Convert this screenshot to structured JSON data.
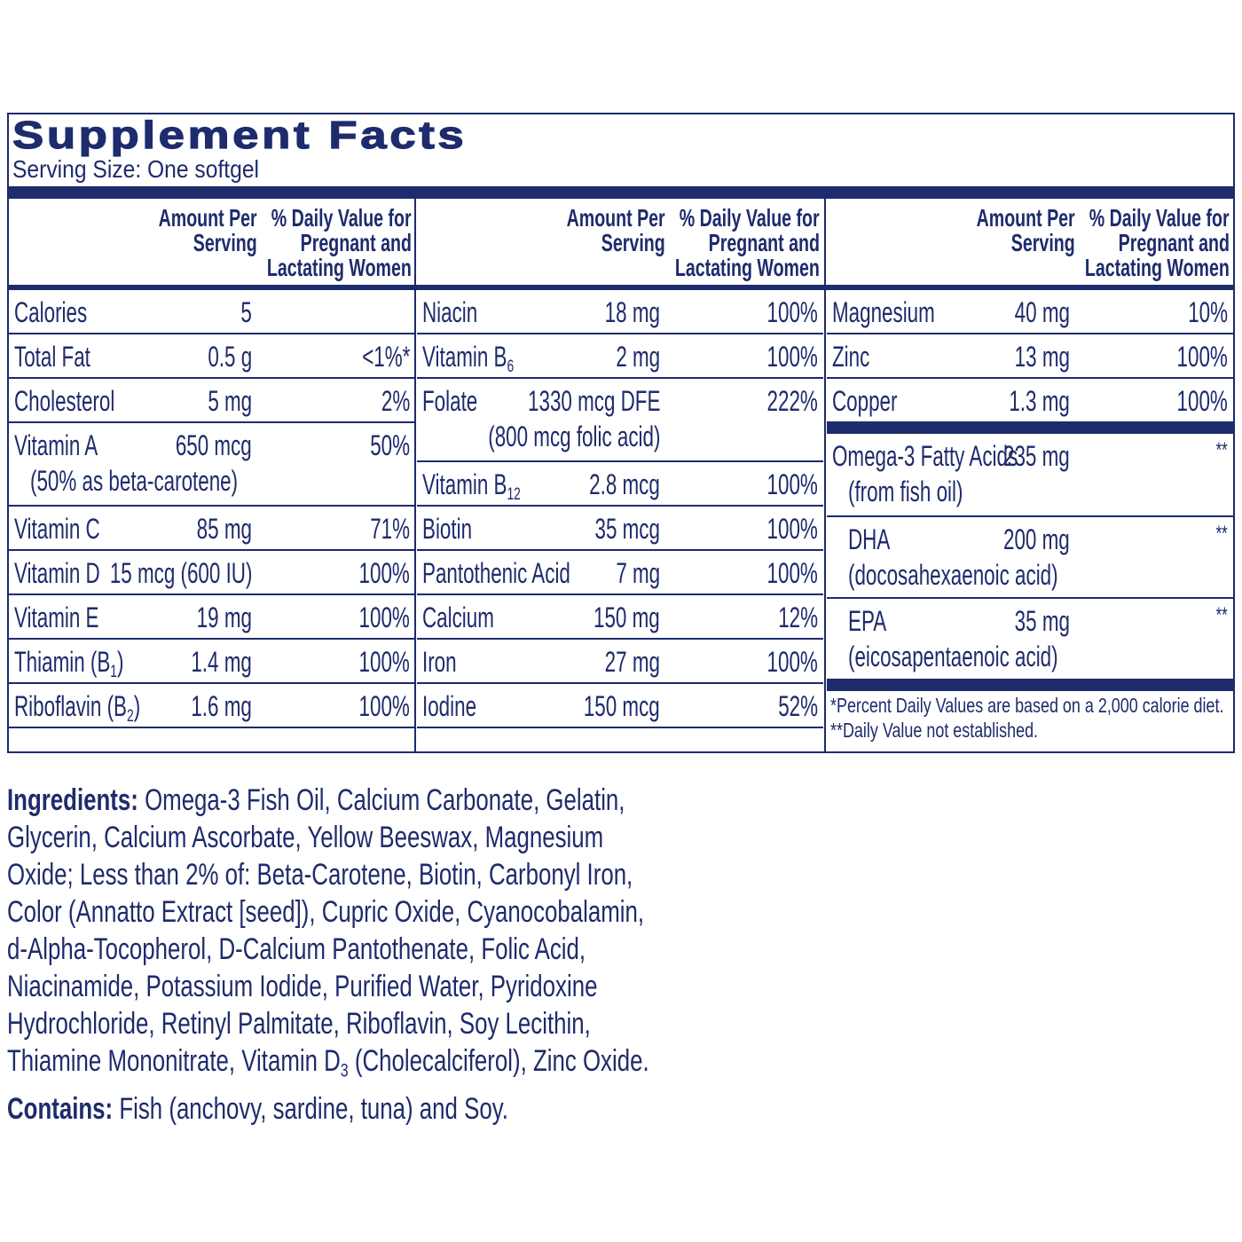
{
  "title": "Supplement Facts",
  "serving_size": "Serving Size: One softgel",
  "columns": [
    {
      "header": {
        "amount": [
          "Amount Per",
          "Serving"
        ],
        "dv": [
          "% Daily Value for",
          "Pregnant and",
          "Lactating Women"
        ]
      },
      "rows": [
        {
          "name": [
            "Calories"
          ],
          "amount": "5"
        },
        {
          "name": [
            "Total Fat"
          ],
          "amount": "0.5 g",
          "dv": "<1%*"
        },
        {
          "name": [
            "Cholesterol"
          ],
          "amount": "5 mg",
          "dv": "2%"
        },
        {
          "name": [
            "Vitamin A"
          ],
          "amount": "650 mcg",
          "dv": "50%",
          "note": "(50% as beta-carotene)"
        },
        {
          "name": [
            "Vitamin C"
          ],
          "amount": "85 mg",
          "dv": "71%"
        },
        {
          "name": [
            "Vitamin D"
          ],
          "amount": "15 mcg (600 IU)",
          "dv": "100%"
        },
        {
          "name": [
            "Vitamin E"
          ],
          "amount": "19 mg",
          "dv": "100%"
        },
        {
          "name": [
            "Thiamin (B",
            "1",
            ")"
          ],
          "amount": "1.4 mg",
          "dv": "100%"
        },
        {
          "name": [
            "Riboflavin (B",
            "2",
            ")"
          ],
          "amount": "1.6 mg",
          "dv": "100%"
        }
      ]
    },
    {
      "header": {
        "amount": [
          "Amount Per",
          "Serving"
        ],
        "dv": [
          "% Daily Value for",
          "Pregnant and",
          "Lactating Women"
        ]
      },
      "rows": [
        {
          "name": [
            "Niacin"
          ],
          "amount": "18 mg",
          "dv": "100%"
        },
        {
          "name": [
            "Vitamin B",
            "6"
          ],
          "amount": "2 mg",
          "dv": "100%"
        },
        {
          "name": [
            "Folate"
          ],
          "amount": "1330 mcg DFE",
          "dv": "222%",
          "amount_note": "(800 mcg folic acid)"
        },
        {
          "name": [
            "Vitamin B",
            "12"
          ],
          "amount": "2.8 mcg",
          "dv": "100%"
        },
        {
          "name": [
            "Biotin"
          ],
          "amount": "35 mcg",
          "dv": "100%"
        },
        {
          "name": [
            "Pantothenic Acid"
          ],
          "amount": "7 mg",
          "dv": "100%"
        },
        {
          "name": [
            "Calcium"
          ],
          "amount": "150 mg",
          "dv": "12%"
        },
        {
          "name": [
            "Iron"
          ],
          "amount": "27 mg",
          "dv": "100%"
        },
        {
          "name": [
            "Iodine"
          ],
          "amount": "150 mcg",
          "dv": "52%"
        }
      ]
    },
    {
      "header": {
        "amount": [
          "Amount Per",
          "Serving"
        ],
        "dv": [
          "% Daily Value for",
          "Pregnant and",
          "Lactating Women"
        ]
      },
      "rows": [
        {
          "name": [
            "Magnesium"
          ],
          "amount": "40 mg",
          "dv": "10%"
        },
        {
          "name": [
            "Zinc"
          ],
          "amount": "13 mg",
          "dv": "100%"
        },
        {
          "name": [
            "Copper"
          ],
          "amount": "1.3 mg",
          "dv": "100%"
        }
      ],
      "fatty_acids": [
        {
          "name": [
            "Omega-3 Fatty Acids"
          ],
          "amount": "235 mg",
          "dv": "**",
          "note": "(from fish oil)"
        },
        {
          "name": [
            "DHA"
          ],
          "amount": "200 mg",
          "dv": "**",
          "note": "(docosahexaenoic acid)"
        },
        {
          "name": [
            "EPA"
          ],
          "amount": "35 mg",
          "dv": "**",
          "note": "(eicosapentaenoic acid)"
        }
      ],
      "footnotes": [
        "*Percent Daily Values are based on a 2,000 calorie diet.",
        "**Daily Value not established."
      ]
    }
  ],
  "ingredients": {
    "label": "Ingredients:",
    "lines": [
      [
        "Omega-3 Fish Oil, Calcium Carbonate, Gelatin,"
      ],
      [
        "Glycerin, Calcium Ascorbate, Yellow Beeswax, Magnesium"
      ],
      [
        "Oxide; Less than 2% of: Beta-Carotene, Biotin, Carbonyl Iron,"
      ],
      [
        "Color (Annatto Extract [seed]), Cupric Oxide, Cyanocobalamin,"
      ],
      [
        "d-Alpha-Tocopherol, D-Calcium Pantothenate, Folic Acid,"
      ],
      [
        "Niacinamide, Potassium Iodide, Purified Water, Pyridoxine"
      ],
      [
        "Hydrochloride, Retinyl Palmitate, Riboflavin, Soy Lecithin,"
      ],
      [
        "Thiamine Mononitrate, Vitamin D",
        "3",
        " (Cholecalciferol), Zinc Oxide."
      ]
    ]
  },
  "contains": {
    "label": "Contains:",
    "text": "Fish (anchovy, sardine, tuna) and Soy."
  }
}
